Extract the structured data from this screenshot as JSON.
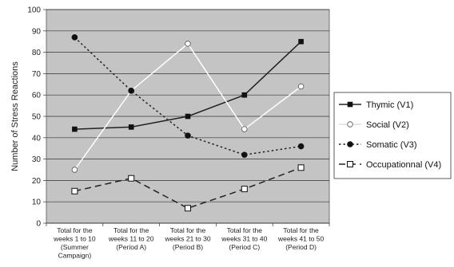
{
  "chart_data": {
    "type": "line",
    "title": "",
    "ylabel": "Number of Stress Reactions",
    "xlabel": "",
    "ylim": [
      0,
      100
    ],
    "yticks": [
      0,
      10,
      20,
      30,
      40,
      50,
      60,
      70,
      80,
      90,
      100
    ],
    "grid": true,
    "legend_position": "right",
    "categories": [
      [
        "Total for the",
        "weeks 1 to 10",
        "(Summer",
        "Campaign)"
      ],
      [
        "Total for the",
        "weeks 11 to 20",
        "(Period A)"
      ],
      [
        "Total for the",
        "weeks 21 to 30",
        "(Period B)"
      ],
      [
        "Total for the",
        "weeks 31 to 40",
        "(Period C)"
      ],
      [
        "Total for the",
        "weeks 41 to 50",
        "(Period D)"
      ]
    ],
    "series": [
      {
        "name": "Thymic (V1)",
        "values": [
          44,
          45,
          50,
          60,
          85
        ],
        "color": "#222222",
        "line": "solid",
        "marker": "square-filled",
        "line_color": "#222222"
      },
      {
        "name": "Social (V2)",
        "values": [
          25,
          62,
          84,
          44,
          64
        ],
        "color": "#ffffff",
        "line": "solid",
        "marker": "circle-open",
        "line_color": "#ffffff"
      },
      {
        "name": "Somatic (V3)",
        "values": [
          87,
          62,
          41,
          32,
          36
        ],
        "color": "#222222",
        "line": "dotted",
        "marker": "circle-filled",
        "line_color": "#222222"
      },
      {
        "name": "Occupationnal (V4)",
        "values": [
          15,
          21,
          7,
          16,
          26
        ],
        "color": "#222222",
        "line": "dashed",
        "marker": "square-open",
        "line_color": "#222222"
      }
    ]
  }
}
